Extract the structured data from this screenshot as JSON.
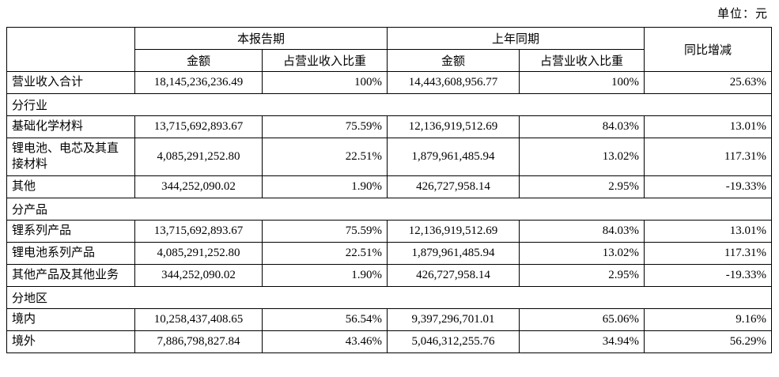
{
  "unit_note": "单位：元",
  "table": {
    "corner": "",
    "col_groups": [
      {
        "label": "本报告期"
      },
      {
        "label": "上年同期"
      }
    ],
    "sub_headers": {
      "amount": "金额",
      "share": "占营业收入比重"
    },
    "yoy_header": "同比增减",
    "rows": [
      {
        "type": "data",
        "label": "营业收入合计",
        "cur_amount": "18,145,236,236.49",
        "cur_share": "100%",
        "prior_amount": "14,443,608,956.77",
        "prior_share": "100%",
        "yoy": "25.63%"
      },
      {
        "type": "section",
        "label": "分行业"
      },
      {
        "type": "data",
        "label": "基础化学材料",
        "cur_amount": "13,715,692,893.67",
        "cur_share": "75.59%",
        "prior_amount": "12,136,919,512.69",
        "prior_share": "84.03%",
        "yoy": "13.01%"
      },
      {
        "type": "data",
        "label": "锂电池、电芯及其直接材料",
        "cur_amount": "4,085,291,252.80",
        "cur_share": "22.51%",
        "prior_amount": "1,879,961,485.94",
        "prior_share": "13.02%",
        "yoy": "117.31%"
      },
      {
        "type": "data",
        "label": "其他",
        "cur_amount": "344,252,090.02",
        "cur_share": "1.90%",
        "prior_amount": "426,727,958.14",
        "prior_share": "2.95%",
        "yoy": "-19.33%"
      },
      {
        "type": "section",
        "label": "分产品"
      },
      {
        "type": "data",
        "label": "锂系列产品",
        "cur_amount": "13,715,692,893.67",
        "cur_share": "75.59%",
        "prior_amount": "12,136,919,512.69",
        "prior_share": "84.03%",
        "yoy": "13.01%"
      },
      {
        "type": "data",
        "label": "锂电池系列产品",
        "cur_amount": "4,085,291,252.80",
        "cur_share": "22.51%",
        "prior_amount": "1,879,961,485.94",
        "prior_share": "13.02%",
        "yoy": "117.31%"
      },
      {
        "type": "data",
        "label": "其他产品及其他业务",
        "cur_amount": "344,252,090.02",
        "cur_share": "1.90%",
        "prior_amount": "426,727,958.14",
        "prior_share": "2.95%",
        "yoy": "-19.33%"
      },
      {
        "type": "section",
        "label": "分地区"
      },
      {
        "type": "data",
        "label": "境内",
        "cur_amount": "10,258,437,408.65",
        "cur_share": "56.54%",
        "prior_amount": "9,397,296,701.01",
        "prior_share": "65.06%",
        "yoy": "9.16%"
      },
      {
        "type": "data",
        "label": "境外",
        "cur_amount": "7,886,798,827.84",
        "cur_share": "43.46%",
        "prior_amount": "5,046,312,255.76",
        "prior_share": "34.94%",
        "yoy": "56.29%"
      }
    ]
  }
}
